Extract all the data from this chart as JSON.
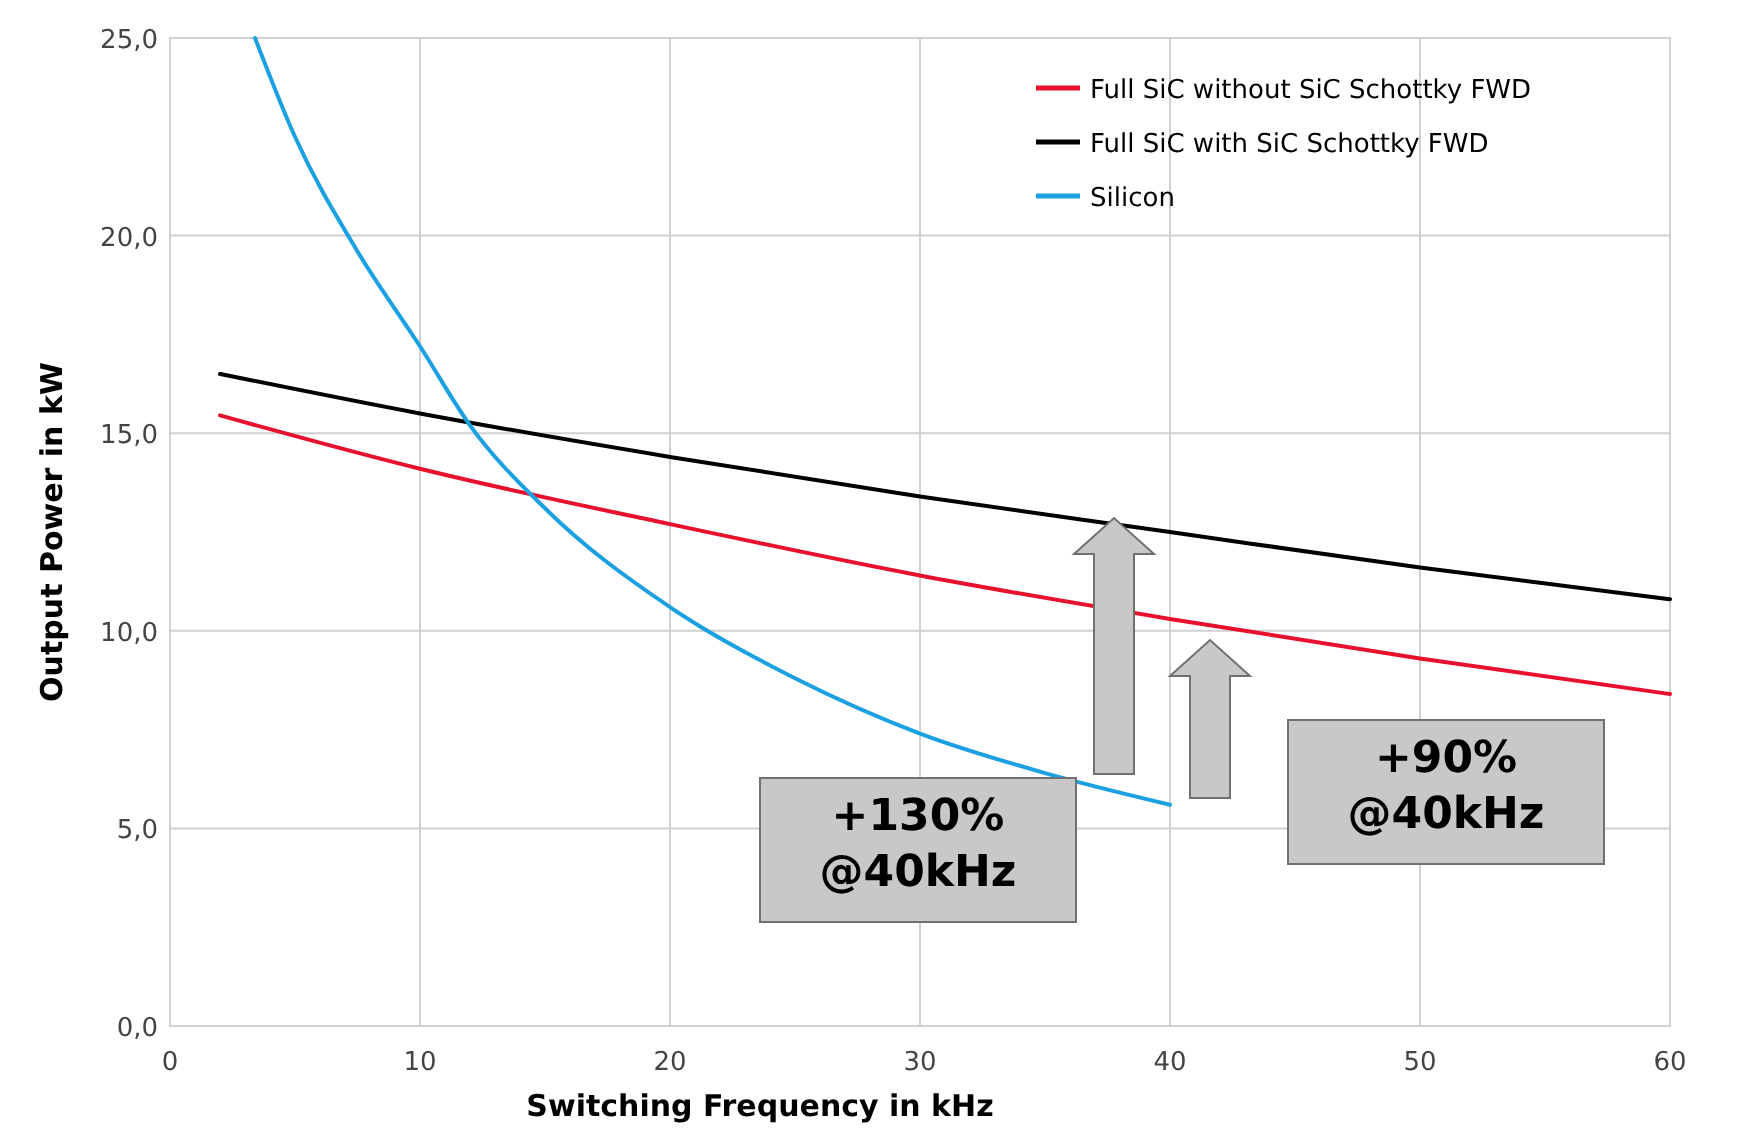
{
  "chart_data": {
    "type": "line",
    "xlabel": "Switching Frequency in kHz",
    "ylabel": "Output Power in kW",
    "xlim": [
      0,
      60
    ],
    "xticks": [
      0,
      10,
      20,
      30,
      40,
      50,
      60
    ],
    "ylim": [
      0,
      25
    ],
    "yticks": [
      {
        "value": 0,
        "label": "0,0"
      },
      {
        "value": 5,
        "label": "5,0"
      },
      {
        "value": 10,
        "label": "10,0"
      },
      {
        "value": 15,
        "label": "15,0"
      },
      {
        "value": 20,
        "label": "20,0"
      },
      {
        "value": 25,
        "label": "25,0"
      }
    ],
    "grid": true,
    "legend": "top right",
    "marker": "none",
    "line_style": "solid",
    "series": [
      {
        "name": "Full SiC without SiC Schottky FWD",
        "color": "#e8112d",
        "x": [
          2,
          10,
          20,
          30,
          40,
          50,
          60
        ],
        "values": [
          15.45,
          14.1,
          12.7,
          11.4,
          10.3,
          9.3,
          8.4
        ]
      },
      {
        "name": "Full SiC with SiC Schottky FWD",
        "color": "#000000",
        "x": [
          2,
          10,
          20,
          30,
          40,
          50,
          60
        ],
        "values": [
          16.5,
          15.5,
          14.4,
          13.4,
          12.5,
          11.6,
          10.8
        ]
      },
      {
        "name": "Silicon",
        "color": "#1ba1e2",
        "x": [
          3.4,
          5,
          7.5,
          10,
          12,
          15,
          20,
          25,
          30,
          35,
          40
        ],
        "values": [
          25,
          22.5,
          19.6,
          17.2,
          15.2,
          13.1,
          10.6,
          8.8,
          7.4,
          6.4,
          5.6
        ]
      }
    ],
    "annotations": [
      "+130%\n@40kHz",
      "+90%\n@40kHz"
    ]
  }
}
